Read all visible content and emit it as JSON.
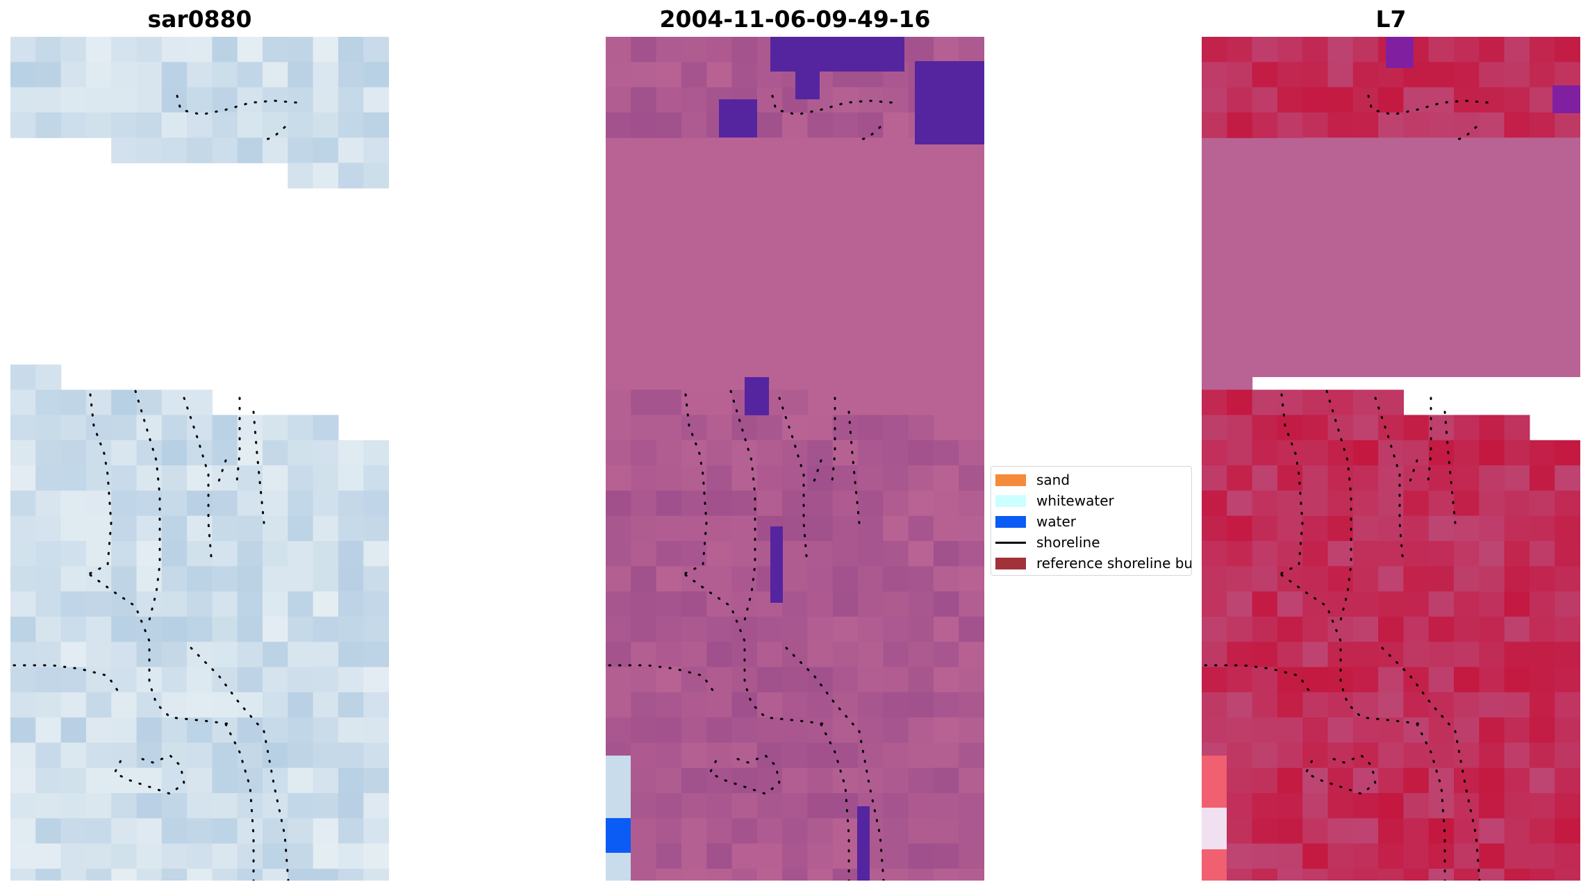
{
  "panels": [
    {
      "title": "sar0880",
      "style": "rgb"
    },
    {
      "title": "2004-11-06-09-49-16",
      "style": "classified"
    },
    {
      "title": "L7",
      "style": "index"
    }
  ],
  "legend": {
    "items": [
      {
        "label": "sand",
        "color": "#f58a3a",
        "kind": "patch"
      },
      {
        "label": "whitewater",
        "color": "#ccffff",
        "kind": "patch"
      },
      {
        "label": "water",
        "color": "#0a5cf5",
        "kind": "patch"
      },
      {
        "label": "shoreline",
        "color": "#000000",
        "kind": "line"
      },
      {
        "label": "reference shoreline buffer",
        "color": "#a03238",
        "kind": "patch"
      }
    ]
  },
  "colors": {
    "sar_blue": "#b8d0e4",
    "sar_light": "#e8f0f4",
    "class_purple": "#a0508c",
    "class_pink": "#b96394",
    "class_darkblue": "#5525a0",
    "index_red": "#c41840",
    "index_pink": "#b96394"
  }
}
